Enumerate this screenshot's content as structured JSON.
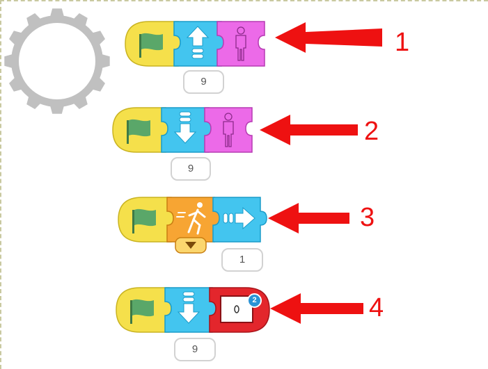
{
  "rows": [
    {
      "number": "1",
      "param": "9",
      "blocks": [
        "green-flag-trigger",
        "move-up",
        "character-appear"
      ]
    },
    {
      "number": "2",
      "param": "9",
      "blocks": [
        "green-flag-trigger",
        "move-down",
        "character-appear"
      ]
    },
    {
      "number": "3",
      "param": "1",
      "blocks": [
        "green-flag-trigger",
        "run-animation",
        "move-right"
      ]
    },
    {
      "number": "4",
      "param": "9",
      "blocks": [
        "green-flag-trigger",
        "move-down",
        "go-to-page"
      ],
      "page_badge": "2"
    }
  ],
  "colors": {
    "trigger": "#f5e04b",
    "motion": "#43c5ef",
    "looks": "#ec6ae8",
    "control": "#f7a533",
    "end": "#e3262c",
    "arrow": "#ee1111",
    "gear": "#c0c0c0"
  },
  "icons": [
    "gear-icon",
    "flag-icon",
    "arrow-up-icon",
    "arrow-down-icon",
    "arrow-right-icon",
    "person-icon",
    "running-person-icon",
    "dropdown-icon",
    "page-icon",
    "red-arrow-icon"
  ]
}
